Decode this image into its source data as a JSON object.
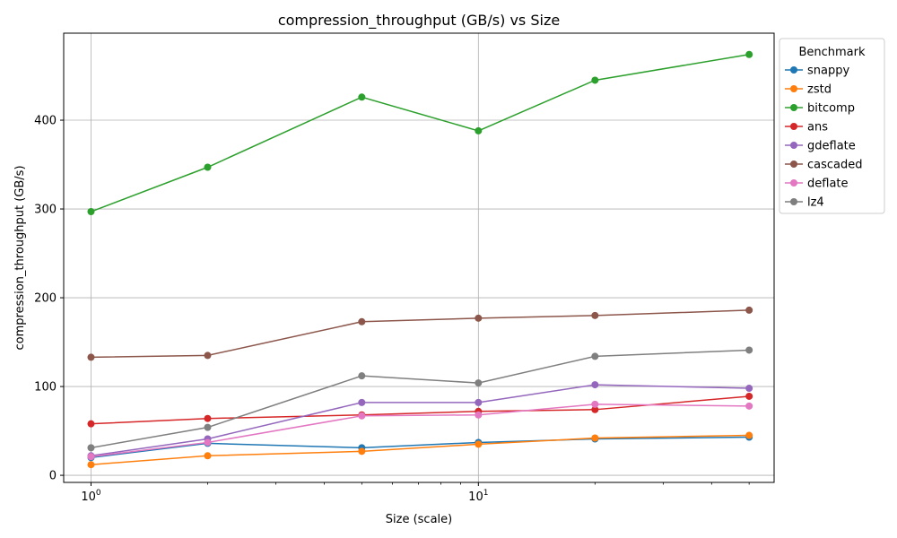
{
  "chart_data": {
    "type": "line",
    "title": "compression_throughput (GB/s) vs Size",
    "xlabel": "Size (scale)",
    "ylabel": "compression_throughput (GB/s)",
    "xscale": "log",
    "x": [
      1,
      2,
      5,
      10,
      20,
      50
    ],
    "x_tick_labels": [
      {
        "value": 1,
        "base": "10",
        "exp": "0"
      },
      {
        "value": 10,
        "base": "10",
        "exp": "1"
      }
    ],
    "xlim": [
      0.85,
      58
    ],
    "ylim": [
      -8,
      498
    ],
    "y_ticks": [
      0,
      100,
      200,
      300,
      400
    ],
    "grid": true,
    "legend": {
      "title": "Benchmark",
      "placement": "outside-top-right"
    },
    "series": [
      {
        "name": "snappy",
        "color": "#1f77b4",
        "values": [
          20,
          36,
          31,
          37,
          41,
          43
        ]
      },
      {
        "name": "zstd",
        "color": "#ff7f0e",
        "values": [
          12,
          22,
          27,
          35,
          42,
          45
        ]
      },
      {
        "name": "bitcomp",
        "color": "#2ca02c",
        "values": [
          297,
          347,
          426,
          388,
          445,
          474
        ]
      },
      {
        "name": "ans",
        "color": "#d62728",
        "values": [
          58,
          64,
          68,
          72,
          74,
          89
        ]
      },
      {
        "name": "gdeflate",
        "color": "#9467bd",
        "values": [
          22,
          41,
          82,
          82,
          102,
          98
        ]
      },
      {
        "name": "cascaded",
        "color": "#8c564b",
        "values": [
          133,
          135,
          173,
          177,
          180,
          186
        ]
      },
      {
        "name": "deflate",
        "color": "#e377c2",
        "values": [
          21,
          37,
          67,
          68,
          80,
          78
        ]
      },
      {
        "name": "lz4",
        "color": "#7f7f7f",
        "values": [
          31,
          54,
          112,
          104,
          134,
          141
        ]
      }
    ]
  }
}
